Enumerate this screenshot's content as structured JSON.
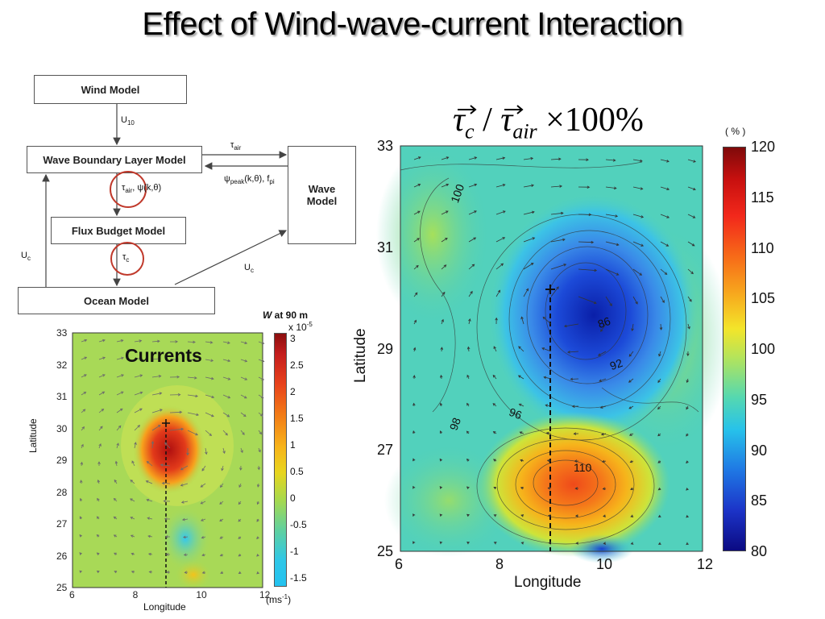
{
  "title": "Effect of Wind-wave-current Interaction",
  "diagram": {
    "boxes": {
      "wind": "Wind Model",
      "wbl": "Wave Boundary Layer Model",
      "flux": "Flux Budget Model",
      "ocean": "Ocean Model",
      "wave_line1": "Wave",
      "wave_line2": "Model"
    },
    "labels": {
      "u10": "U",
      "u10_sub": "10",
      "tau_air": "τ",
      "tau_air_sub": "air",
      "psi": "ψ",
      "psi_sub": "peak",
      "psi_args": "(k,θ), f",
      "psi_fsub": "pi",
      "tau_air_psi": "τ",
      "tau_air_psi_sub": "air",
      "psi_k": ", ψ(k,θ)",
      "tau_c": "τ",
      "tau_c_sub": "c",
      "uc_left": "U",
      "uc_left_sub": "c",
      "uc_right": "U",
      "uc_right_sub": "c"
    }
  },
  "small_map": {
    "overlay_label": "Currents",
    "colorbar_title_italic": "W",
    "colorbar_title": " at 90 m",
    "colorbar_exp": "x 10",
    "colorbar_exp_sup": "-5",
    "colorbar_ticks": [
      "3",
      "2.5",
      "2",
      "1.5",
      "1",
      "0.5",
      "0",
      "-0.5",
      "-1",
      "-1.5"
    ],
    "colorbar_unit": "(ms",
    "colorbar_unit_sup": "-1",
    "colorbar_unit_end": ")",
    "xticks": [
      "6",
      "8",
      "10",
      "12"
    ],
    "yticks": [
      "33",
      "32",
      "31",
      "30",
      "29",
      "28",
      "27",
      "26",
      "25"
    ],
    "xlabel": "Longitude",
    "ylabel": "Latitude"
  },
  "large_map": {
    "formula": {
      "tau": "τ",
      "c": "c",
      "slash": "/",
      "air": "air",
      "times100": "×100%"
    },
    "colorbar_unit": "( % )",
    "colorbar_ticks": [
      "120",
      "115",
      "110",
      "105",
      "100",
      "95",
      "90",
      "85",
      "80"
    ],
    "xticks": [
      "6",
      "8",
      "10",
      "12"
    ],
    "yticks": [
      "33",
      "31",
      "29",
      "27",
      "25"
    ],
    "xlabel": "Longitude",
    "ylabel": "Latitude",
    "contour_labels": [
      "100",
      "86",
      "92",
      "96",
      "98",
      "110"
    ]
  },
  "colors": {
    "circle": "#c0392b",
    "background": "#ffffff"
  }
}
